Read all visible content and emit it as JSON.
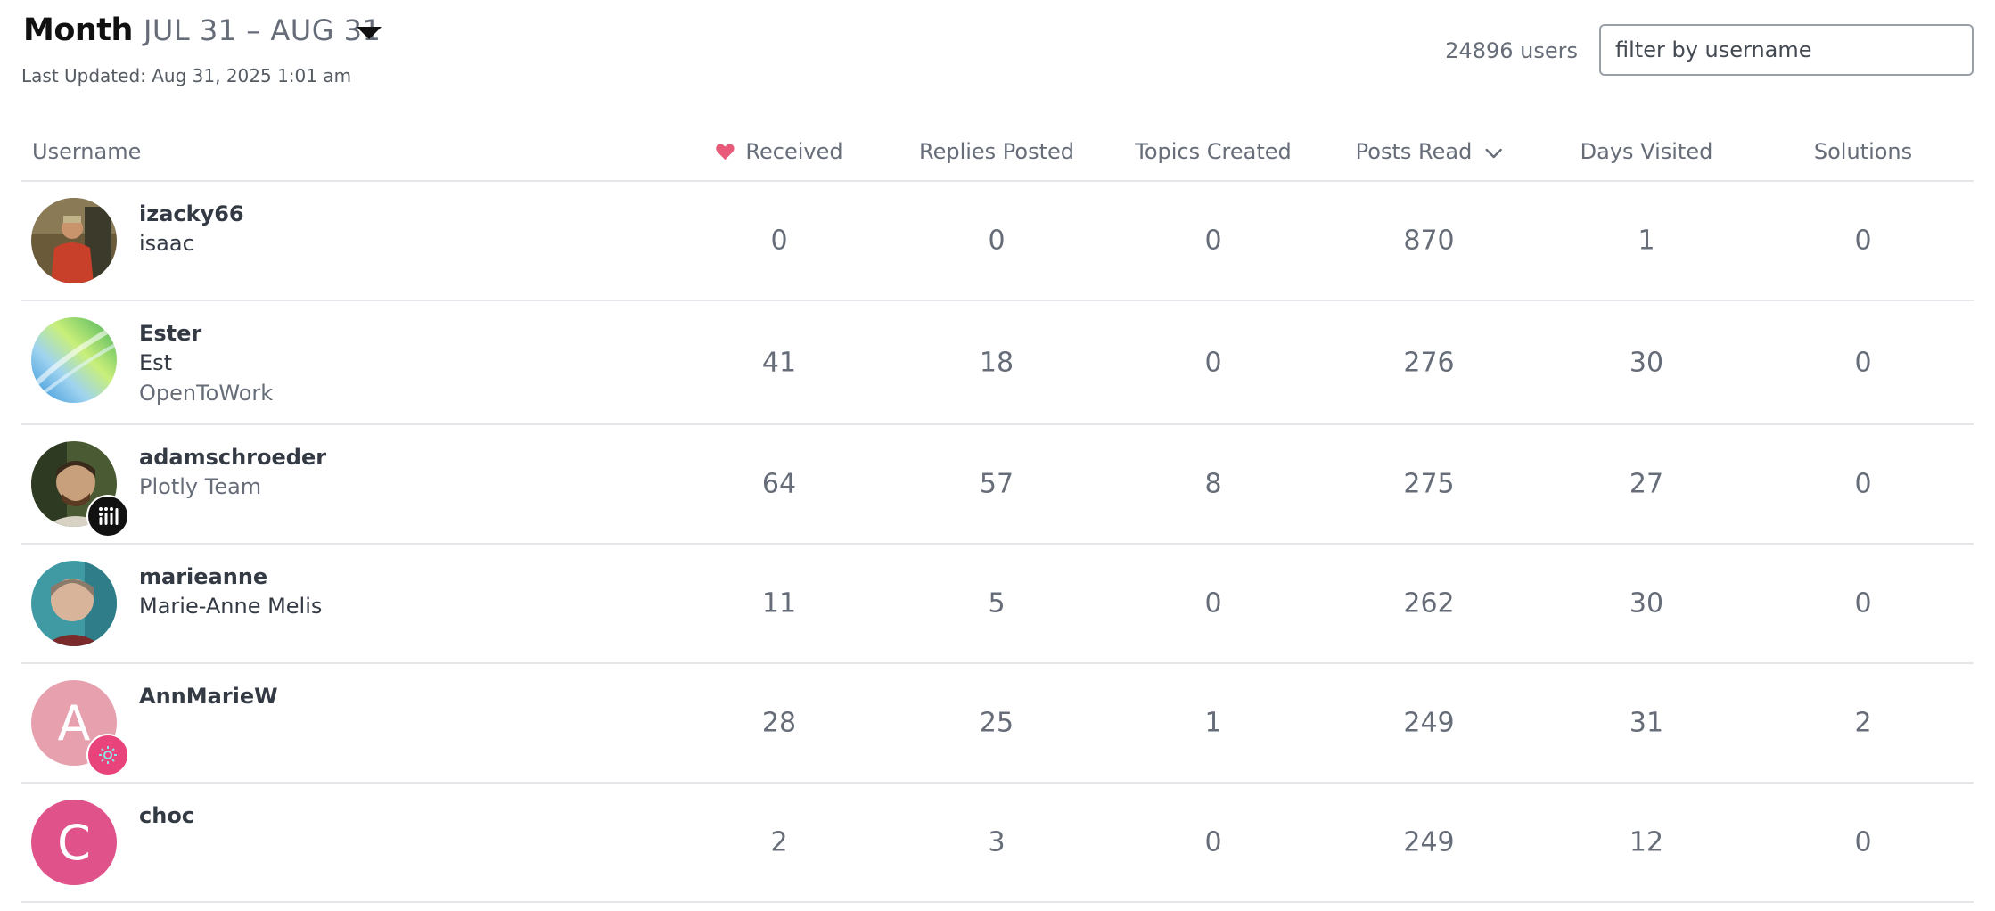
{
  "header": {
    "period_label": "Month",
    "period_range": "JUL 31 – AUG 31",
    "last_updated": "Last Updated: Aug 31, 2025 1:01 am",
    "user_count": "24896 users",
    "filter_placeholder": "filter by username"
  },
  "columns": {
    "username": "Username",
    "received": "Received",
    "replies_posted": "Replies Posted",
    "topics_created": "Topics Created",
    "posts_read": "Posts Read",
    "days_visited": "Days Visited",
    "solutions": "Solutions"
  },
  "colors": {
    "heart": "#e8597a",
    "avatar_a": "#e6a0ae",
    "avatar_c": "#e0528a",
    "badge_dark": "#111111",
    "badge_pink": "#e8437a"
  },
  "rows": [
    {
      "username": "izacky66",
      "name": "isaac",
      "title": "",
      "received": "0",
      "replies_posted": "0",
      "topics_created": "0",
      "posts_read": "870",
      "days_visited": "1",
      "solutions": "0"
    },
    {
      "username": "Ester",
      "name": "Est",
      "title": "OpenToWork",
      "received": "41",
      "replies_posted": "18",
      "topics_created": "0",
      "posts_read": "276",
      "days_visited": "30",
      "solutions": "0"
    },
    {
      "username": "adamschroeder",
      "name": "",
      "title": "Plotly Team",
      "received": "64",
      "replies_posted": "57",
      "topics_created": "8",
      "posts_read": "275",
      "days_visited": "27",
      "solutions": "0"
    },
    {
      "username": "marieanne",
      "name": "Marie-Anne Melis",
      "title": "",
      "received": "11",
      "replies_posted": "5",
      "topics_created": "0",
      "posts_read": "262",
      "days_visited": "30",
      "solutions": "0"
    },
    {
      "username": "AnnMarieW",
      "name": "",
      "title": "",
      "avatar_letter": "A",
      "received": "28",
      "replies_posted": "25",
      "topics_created": "1",
      "posts_read": "249",
      "days_visited": "31",
      "solutions": "2"
    },
    {
      "username": "choc",
      "name": "",
      "title": "",
      "avatar_letter": "C",
      "received": "2",
      "replies_posted": "3",
      "topics_created": "0",
      "posts_read": "249",
      "days_visited": "12",
      "solutions": "0"
    }
  ]
}
